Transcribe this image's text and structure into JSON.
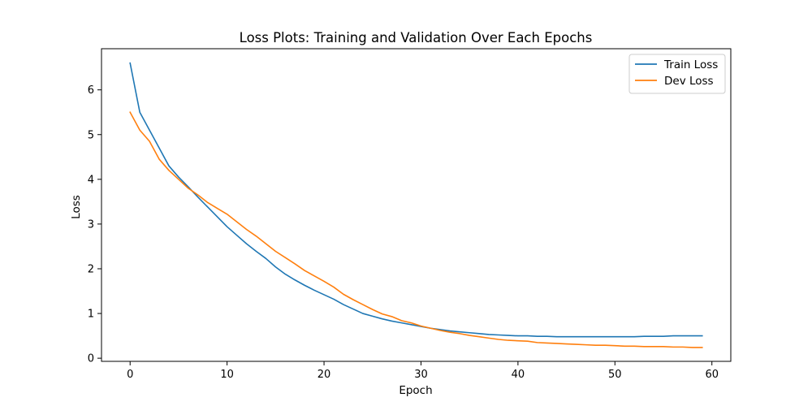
{
  "chart_data": {
    "type": "line",
    "title": "Loss Plots: Training and Validation Over Each Epochs",
    "xlabel": "Epoch",
    "ylabel": "Loss",
    "xlim": [
      -2.95,
      61.95
    ],
    "ylim": [
      -0.07,
      6.92
    ],
    "xticks": [
      0,
      10,
      20,
      30,
      40,
      50,
      60
    ],
    "yticks": [
      0,
      1,
      2,
      3,
      4,
      5,
      6
    ],
    "grid": false,
    "legend_position": "top-right",
    "x": [
      0,
      1,
      2,
      3,
      4,
      5,
      6,
      7,
      8,
      9,
      10,
      11,
      12,
      13,
      14,
      15,
      16,
      17,
      18,
      19,
      20,
      21,
      22,
      23,
      24,
      25,
      26,
      27,
      28,
      29,
      30,
      31,
      32,
      33,
      34,
      35,
      36,
      37,
      38,
      39,
      40,
      41,
      42,
      43,
      44,
      45,
      46,
      47,
      48,
      49,
      50,
      51,
      52,
      53,
      54,
      55,
      56,
      57,
      58,
      59
    ],
    "series": [
      {
        "name": "Train Loss",
        "color": "#1f77b4",
        "values": [
          6.6,
          5.5,
          5.1,
          4.7,
          4.3,
          4.05,
          3.83,
          3.6,
          3.38,
          3.16,
          2.94,
          2.75,
          2.56,
          2.39,
          2.23,
          2.04,
          1.88,
          1.75,
          1.63,
          1.52,
          1.42,
          1.32,
          1.2,
          1.1,
          1.0,
          0.94,
          0.88,
          0.83,
          0.79,
          0.75,
          0.71,
          0.67,
          0.64,
          0.61,
          0.59,
          0.57,
          0.55,
          0.53,
          0.52,
          0.51,
          0.5,
          0.5,
          0.49,
          0.49,
          0.48,
          0.48,
          0.48,
          0.48,
          0.48,
          0.48,
          0.48,
          0.48,
          0.48,
          0.49,
          0.49,
          0.49,
          0.5,
          0.5,
          0.5,
          0.5
        ]
      },
      {
        "name": "Dev Loss",
        "color": "#ff7f0e",
        "values": [
          5.5,
          5.1,
          4.85,
          4.45,
          4.2,
          4.0,
          3.8,
          3.65,
          3.48,
          3.35,
          3.22,
          3.05,
          2.88,
          2.73,
          2.56,
          2.39,
          2.25,
          2.11,
          1.96,
          1.84,
          1.72,
          1.59,
          1.43,
          1.31,
          1.2,
          1.09,
          0.99,
          0.93,
          0.84,
          0.79,
          0.72,
          0.67,
          0.62,
          0.58,
          0.55,
          0.51,
          0.48,
          0.45,
          0.42,
          0.4,
          0.39,
          0.38,
          0.35,
          0.34,
          0.33,
          0.32,
          0.31,
          0.3,
          0.29,
          0.29,
          0.28,
          0.27,
          0.27,
          0.26,
          0.26,
          0.26,
          0.25,
          0.25,
          0.24,
          0.24
        ]
      }
    ]
  }
}
